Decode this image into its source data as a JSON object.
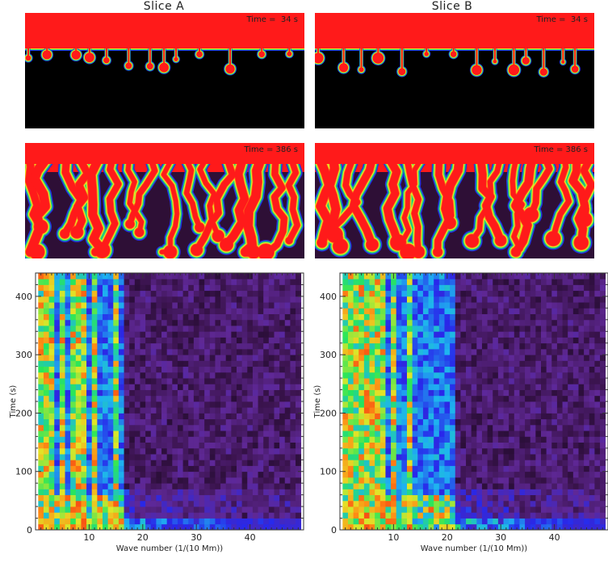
{
  "titles": [
    "Slice A",
    "Slice B"
  ],
  "snapshots": {
    "early_time_label": "Time =  34 s",
    "late_time_label": "Time = 386 s"
  },
  "colors": {
    "upper_fluid": "#ff1a1a",
    "lower_fluid_early": "#000000",
    "lower_fluid_late": "#2e0f36",
    "plume_core": "#ff5a1a",
    "plume_mid": "#e8e822",
    "plume_edge": "#22d07a",
    "plume_rim": "#2230e0"
  },
  "chart_data": [
    {
      "type": "heatmap",
      "panel": "Slice A",
      "xlabel": "Wave number (1/(10 Mm))",
      "ylabel": "Time (s)",
      "xlim": [
        0,
        50
      ],
      "ylim": [
        0,
        440
      ],
      "xticks": [
        10,
        20,
        30,
        40
      ],
      "yticks": [
        0,
        100,
        200,
        300,
        400
      ],
      "colormap": [
        "black",
        "purple",
        "blue",
        "cyan",
        "green",
        "yellow",
        "orange",
        "red"
      ],
      "dominant_wavenumbers": [
        1,
        2,
        3,
        5,
        7,
        8,
        9,
        11,
        15
      ],
      "high_power_band_upper_k": 16,
      "note_low_time_high_k_power": true
    },
    {
      "type": "heatmap",
      "panel": "Slice B",
      "xlabel": "Wave number (1/(10 Mm))",
      "ylabel": "Time (s)",
      "xlim": [
        0,
        50
      ],
      "ylim": [
        0,
        440
      ],
      "xticks": [
        10,
        20,
        30,
        40
      ],
      "yticks": [
        0,
        100,
        200,
        300,
        400
      ],
      "colormap": [
        "black",
        "purple",
        "blue",
        "cyan",
        "green",
        "yellow",
        "orange",
        "red"
      ],
      "dominant_wavenumbers": [
        1,
        2,
        3,
        4,
        5,
        6,
        7,
        8,
        10,
        13
      ],
      "high_power_band_upper_k": 21,
      "note_low_time_high_k_power": true
    }
  ]
}
